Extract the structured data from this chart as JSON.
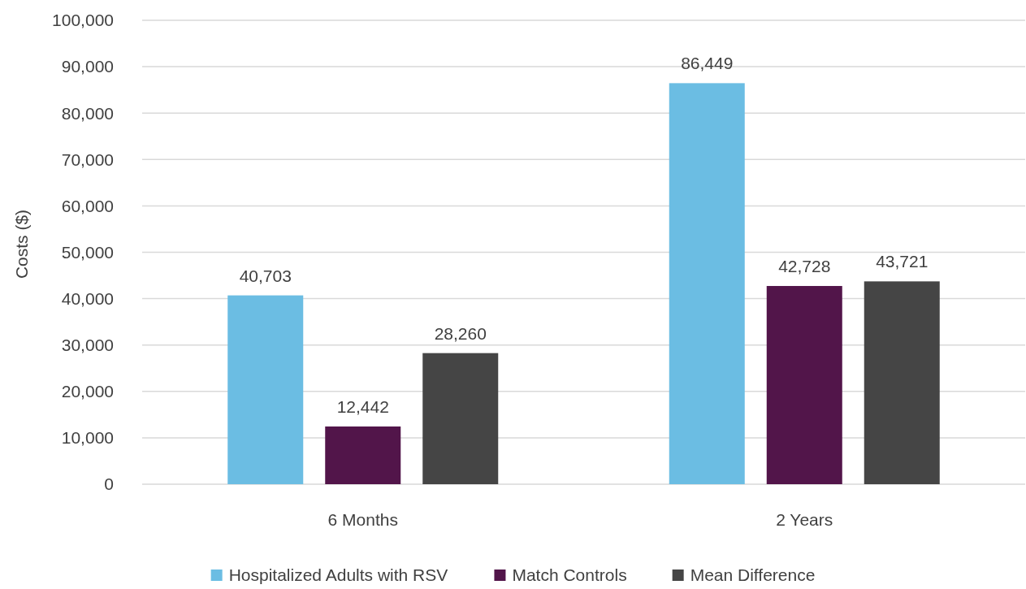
{
  "chart_data": {
    "type": "bar",
    "ylabel": "Costs ($)",
    "categories": [
      "6 Months",
      "2 Years"
    ],
    "series": [
      {
        "name": "Hospitalized Adults with RSV",
        "color": "#6bbde3",
        "values": [
          40703,
          86449
        ],
        "value_labels": [
          "40,703",
          "86,449"
        ]
      },
      {
        "name": "Match Controls",
        "color": "#52154a",
        "values": [
          12442,
          42728
        ],
        "value_labels": [
          "12,442",
          "42,728"
        ]
      },
      {
        "name": "Mean Difference",
        "color": "#454545",
        "values": [
          28260,
          43721
        ],
        "value_labels": [
          "28,260",
          "43,721"
        ]
      }
    ],
    "ylim": [
      0,
      100000
    ],
    "yticks": [
      0,
      {
        "value": 10000,
        "label": "10,000"
      },
      {
        "value": 20000,
        "label": "20,000"
      },
      {
        "value": 30000,
        "label": "30,000"
      },
      {
        "value": 40000,
        "label": "40,000"
      },
      {
        "value": 50000,
        "label": "50,000"
      },
      {
        "value": 60000,
        "label": "60,000"
      },
      {
        "value": 70000,
        "label": "70,000"
      },
      {
        "value": 80000,
        "label": "80,000"
      },
      {
        "value": 90000,
        "label": "90,000"
      },
      {
        "value": 100000,
        "label": "100,000"
      }
    ],
    "grid": "y",
    "legend": "bottom"
  }
}
